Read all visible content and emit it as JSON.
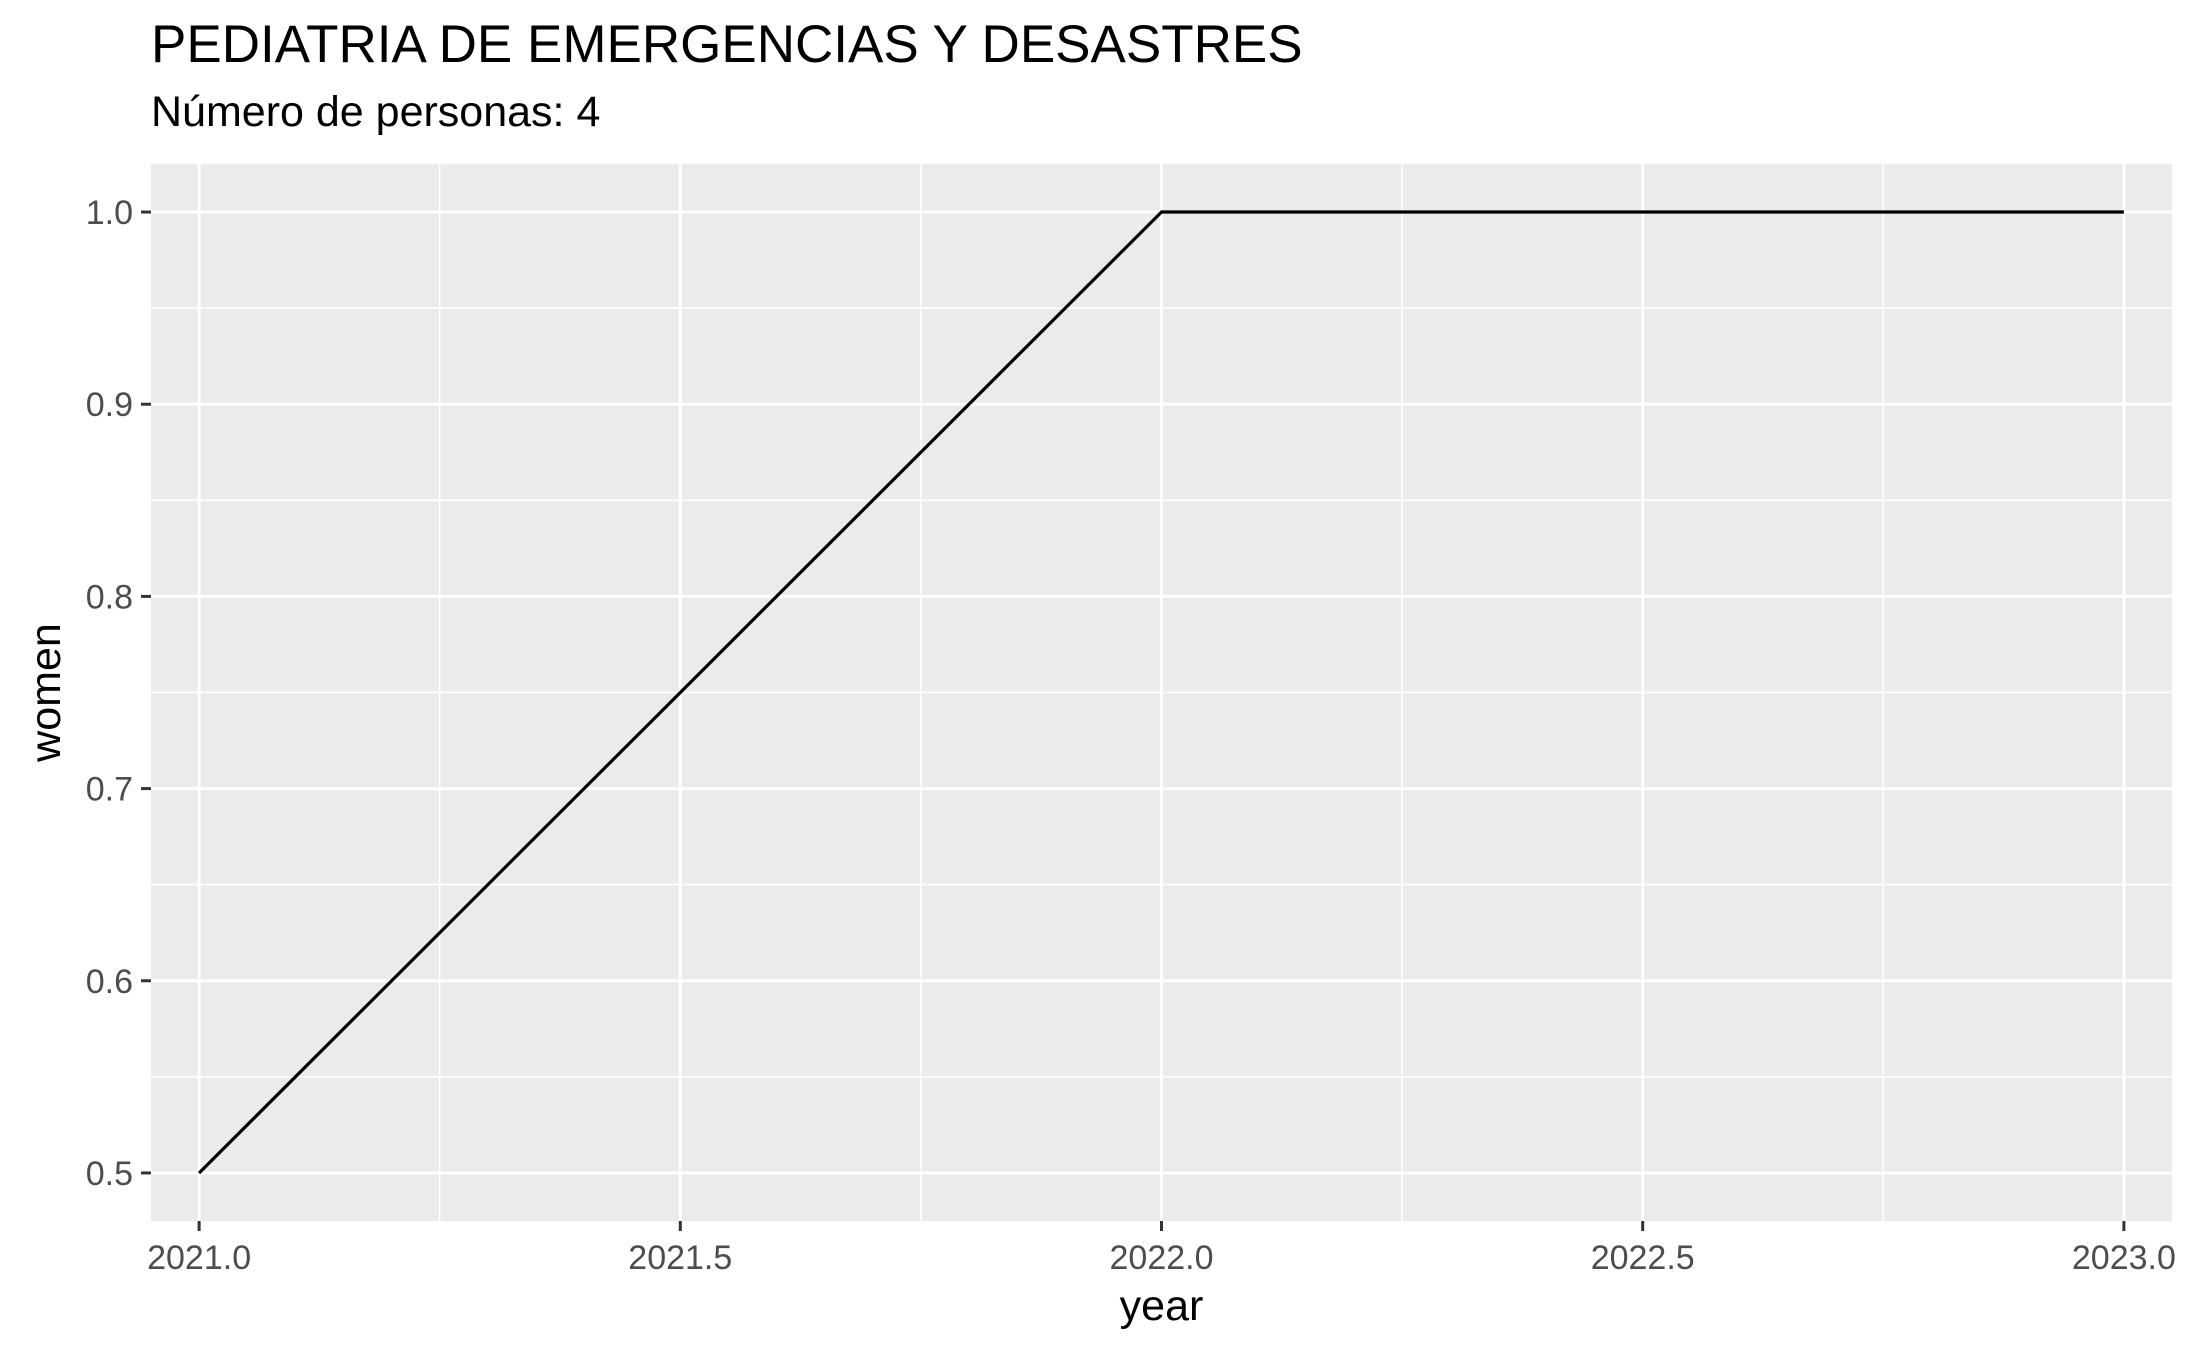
{
  "chart_data": {
    "type": "line",
    "title": "PEDIATRIA DE EMERGENCIAS Y DESASTRES",
    "subtitle": "Número de personas: 4",
    "xlabel": "year",
    "ylabel": "women",
    "x": [
      2021,
      2022,
      2023
    ],
    "series": [
      {
        "values": [
          0.5,
          1.0,
          1.0
        ],
        "color": "#000000"
      }
    ],
    "xlim": [
      2020.95,
      2023.05
    ],
    "ylim": [
      0.475,
      1.025
    ],
    "x_ticks": [
      2021.0,
      2021.5,
      2022.0,
      2022.5,
      2023.0
    ],
    "x_tick_labels": [
      "2021.0",
      "2021.5",
      "2022.0",
      "2022.5",
      "2023.0"
    ],
    "y_ticks": [
      0.5,
      0.6,
      0.7,
      0.8,
      0.9,
      1.0
    ],
    "y_tick_labels": [
      "0.5",
      "0.6",
      "0.7",
      "0.8",
      "0.9",
      "1.0"
    ],
    "grid": true,
    "panel_background": "#ebebeb",
    "grid_color": "#ffffff",
    "tick_label_color": "#4d4d4d",
    "line_color": "#000000"
  }
}
